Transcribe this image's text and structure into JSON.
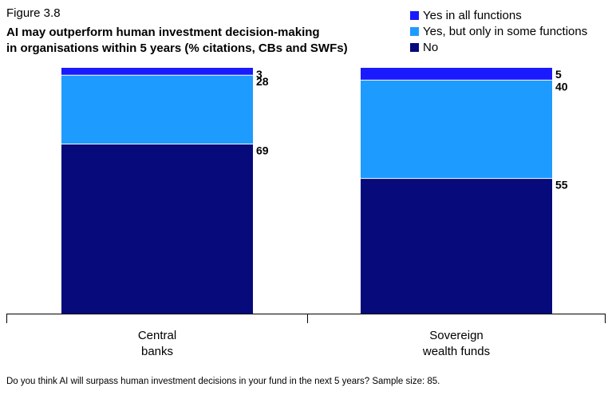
{
  "figure_label": "Figure 3.8",
  "title": "AI may outperform human investment decision-making\nin organisations within 5 years (% citations, CBs and SWFs)",
  "footnote": "Do you think AI will surpass human investment decisions in your fund in the next 5 years? Sample size: 85.",
  "legend": [
    {
      "label": "Yes in all functions",
      "color": "#1a1aff"
    },
    {
      "label": "Yes, but only in some functions",
      "color": "#1e9bff"
    },
    {
      "label": "No",
      "color": "#060a7a"
    }
  ],
  "chart_data": {
    "type": "bar",
    "stacked": true,
    "categories": [
      "Central\nbanks",
      "Sovereign\nwealth funds"
    ],
    "series": [
      {
        "name": "No",
        "values": [
          69,
          55
        ],
        "color": "#060a7a"
      },
      {
        "name": "Yes, but only in some functions",
        "values": [
          28,
          40
        ],
        "color": "#1e9bff"
      },
      {
        "name": "Yes in all functions",
        "values": [
          3,
          5
        ],
        "color": "#1a1aff"
      }
    ],
    "ylim": [
      0,
      100
    ],
    "grid": false,
    "legend_position": "top-right"
  }
}
